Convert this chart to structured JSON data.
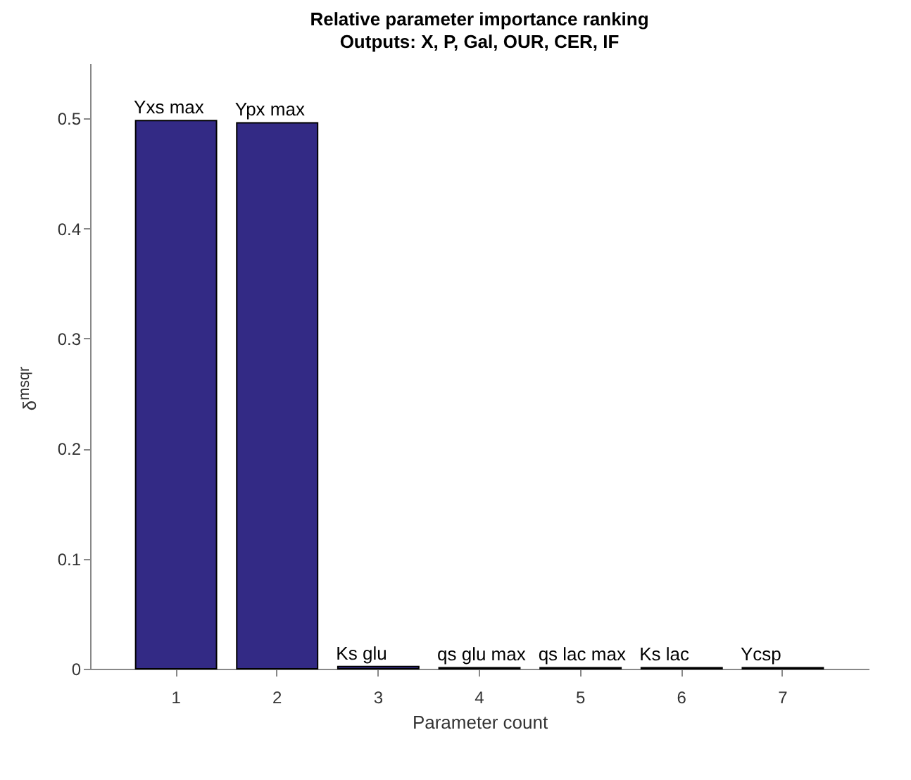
{
  "chart_data": {
    "type": "bar",
    "title": "Relative parameter importance ranking",
    "subtitle": "Outputs: X, P, Gal, OUR, CER, IF",
    "categories": [
      "1",
      "2",
      "3",
      "4",
      "5",
      "6",
      "7"
    ],
    "values": [
      0.498,
      0.496,
      0.002,
      0.001,
      0.001,
      0.001,
      0.001
    ],
    "color": "#332a85",
    "xlabel": "Parameter count",
    "ylabel": "δ$^{msqr}$",
    "ylim": [
      0,
      0.55
    ],
    "yticks": [
      0,
      0.1,
      0.2,
      0.3,
      0.4,
      0.5
    ],
    "grid": false,
    "annotations": [
      {
        "text": "Yxs max",
        "x": "1",
        "y": 0.498
      },
      {
        "text": "Ypx max",
        "x": "2",
        "y": 0.496
      },
      {
        "text": "Ks glu",
        "x": "3",
        "y": 0.002
      },
      {
        "text": "qs glu max",
        "x": "4",
        "y": 0.001
      },
      {
        "text": "qs lac max",
        "x": "5",
        "y": 0.001
      },
      {
        "text": "Ks lac",
        "x": "6",
        "y": 0.001
      },
      {
        "text": "Ycsp",
        "x": "7",
        "y": 0.001
      }
    ]
  }
}
